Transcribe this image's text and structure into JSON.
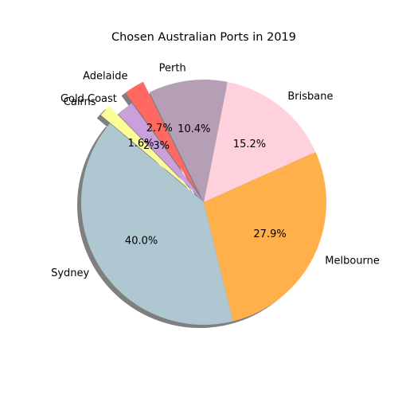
{
  "chart_data": {
    "type": "pie",
    "title": "Chosen Australian Ports in 2019",
    "start_angle_deg": 140,
    "counterclockwise": true,
    "shadow": true,
    "legend": "none",
    "slices": [
      {
        "label": "Sydney",
        "value": 40.0,
        "pct_text": "40.0%",
        "color": "#aec7d1",
        "explode": 0.0
      },
      {
        "label": "Melbourne",
        "value": 27.9,
        "pct_text": "27.9%",
        "color": "#ffb04a",
        "explode": 0.0
      },
      {
        "label": "Brisbane",
        "value": 15.2,
        "pct_text": "15.2%",
        "color": "#ffd1dc",
        "explode": 0.0
      },
      {
        "label": "Perth",
        "value": 10.4,
        "pct_text": "10.4%",
        "color": "#b59fb6",
        "explode": 0.0
      },
      {
        "label": "Adelaide",
        "value": 2.7,
        "pct_text": "2.7%",
        "color": "#ff6961",
        "explode": 0.1
      },
      {
        "label": "Gold Coast",
        "value": 2.3,
        "pct_text": "2.3%",
        "color": "#c9a0dc",
        "explode": 0.0
      },
      {
        "label": "Cairns",
        "value": 1.6,
        "pct_text": "1.6%",
        "color": "#fdfd96",
        "explode": 0.1
      }
    ]
  }
}
